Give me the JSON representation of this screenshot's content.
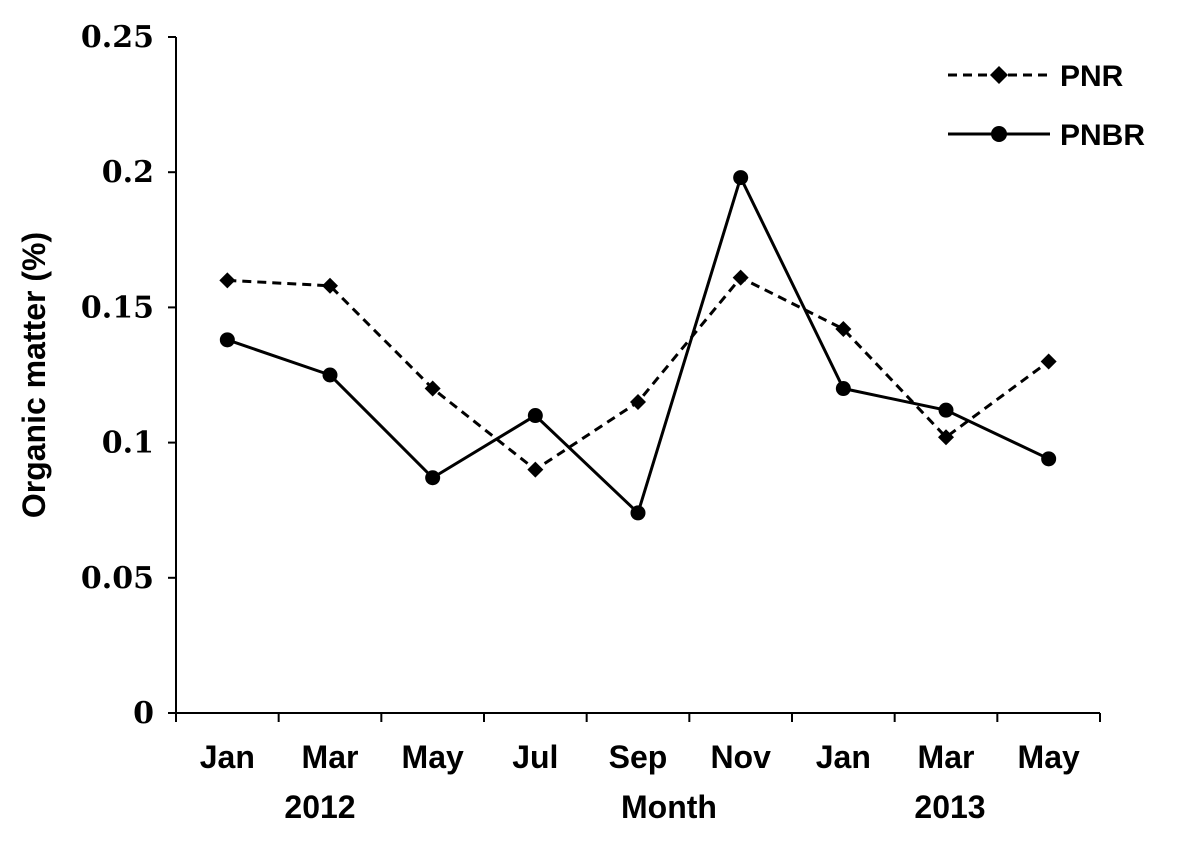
{
  "chart_data": {
    "type": "line",
    "ylabel": "Organic matter (%)",
    "xlabel": "Month",
    "ylim": [
      0,
      0.25
    ],
    "yticks": [
      "0",
      "0.05",
      "0.1",
      "0.15",
      "0.2",
      "0.25"
    ],
    "categories": [
      "Jan",
      "Mar",
      "May",
      "Jul",
      "Sep",
      "Nov",
      "Jan",
      "Mar",
      "May"
    ],
    "year_labels": [
      "2012",
      "2013"
    ],
    "grid": false,
    "legend_position": "top-right",
    "series": [
      {
        "name": "PNR",
        "style": "dashed",
        "marker": "diamond",
        "color": "#000000",
        "values": [
          0.16,
          0.158,
          0.12,
          0.09,
          0.115,
          0.161,
          0.142,
          0.102,
          0.13
        ]
      },
      {
        "name": "PNBR",
        "style": "solid",
        "marker": "circle",
        "color": "#000000",
        "values": [
          0.138,
          0.125,
          0.087,
          0.11,
          0.074,
          0.198,
          0.12,
          0.112,
          0.094
        ]
      }
    ]
  }
}
